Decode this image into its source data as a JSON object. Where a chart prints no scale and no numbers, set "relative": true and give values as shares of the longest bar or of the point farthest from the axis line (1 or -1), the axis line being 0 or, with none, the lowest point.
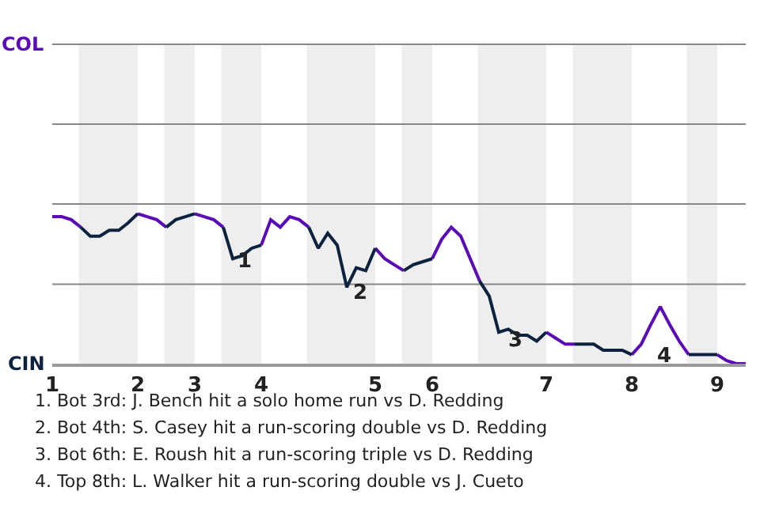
{
  "chart_data": {
    "type": "line",
    "relative": true,
    "categories": [
      "1",
      null,
      null,
      null,
      null,
      null,
      null,
      null,
      null,
      "2",
      null,
      null,
      null,
      null,
      null,
      "3",
      null,
      null,
      null,
      null,
      null,
      null,
      "4",
      null,
      null,
      null,
      null,
      null,
      null,
      null,
      null,
      null,
      null,
      null,
      "5",
      null,
      null,
      null,
      null,
      null,
      "6",
      null,
      null,
      null,
      null,
      null,
      null,
      null,
      null,
      null,
      null,
      null,
      "7",
      null,
      null,
      null,
      null,
      null,
      null,
      null,
      null,
      "8",
      null,
      null,
      null,
      null,
      null,
      null,
      null,
      null,
      "9",
      null,
      null,
      null
    ],
    "series": [
      {
        "color": "#5b0bb5",
        "values": [
          0.98,
          0.98,
          0.96,
          0.91,
          null,
          null,
          null,
          null,
          null,
          1,
          0.98,
          0.96,
          0.91,
          null,
          null,
          1,
          0.98,
          0.96,
          0.91,
          null,
          null,
          null,
          0.79,
          0.96,
          0.91,
          0.98,
          0.96,
          0.91,
          null,
          null,
          null,
          null,
          null,
          null,
          0.77,
          0.7,
          0.66,
          0.62,
          null,
          null,
          0.7,
          0.83,
          0.91,
          0.85,
          0.7,
          0.55,
          null,
          null,
          null,
          null,
          null,
          null,
          0.21,
          0.17,
          0.13,
          0.13,
          null,
          null,
          null,
          null,
          null,
          0.06,
          0.13,
          0.26,
          0.38,
          0.26,
          0.15,
          0.06,
          null,
          null,
          0.06,
          0.02,
          0,
          0
        ]
      },
      {
        "color": "#0c2340",
        "values": [
          null,
          null,
          null,
          0.91,
          0.85,
          0.85,
          0.89,
          0.89,
          0.94,
          1,
          null,
          null,
          0.91,
          0.96,
          0.98,
          1,
          null,
          null,
          0.91,
          0.7,
          0.72,
          0.77,
          0.79,
          null,
          null,
          null,
          null,
          0.91,
          0.77,
          0.87,
          0.79,
          0.51,
          0.64,
          0.62,
          0.77,
          null,
          null,
          0.62,
          0.66,
          0.68,
          0.7,
          null,
          null,
          null,
          null,
          0.55,
          0.45,
          0.21,
          0.23,
          0.19,
          0.19,
          0.15,
          0.21,
          null,
          null,
          0.13,
          0.13,
          0.13,
          0.09,
          0.09,
          0.09,
          0.06,
          null,
          null,
          null,
          null,
          null,
          0.06,
          0.06,
          0.06,
          0.06,
          null,
          null,
          null
        ]
      }
    ],
    "ref_lines": [
      {
        "axis": "y",
        "value": 0.53,
        "color": "#888888"
      }
    ],
    "marker": "none",
    "line_style": "solid",
    "annotations": [
      "COL",
      "CIN",
      "1",
      "2",
      "3",
      "4",
      "1. Bot 3rd: J. Bench hit a solo home run vs D. Redding",
      "2. Bot 4th: S. Casey hit a run-scoring double vs D. Redding",
      "3. Bot 6th: E. Roush hit a run-scoring triple vs D. Redding",
      "4. Top 8th: L. Walker hit a run-scoring double vs J. Cueto"
    ]
  }
}
